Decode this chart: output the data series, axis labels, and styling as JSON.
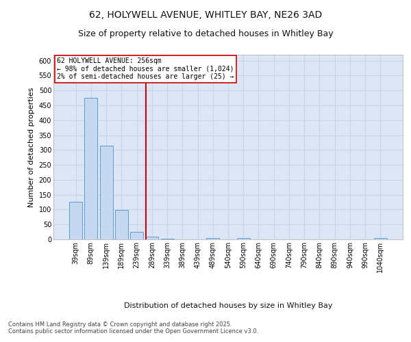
{
  "title_line1": "62, HOLYWELL AVENUE, WHITLEY BAY, NE26 3AD",
  "title_line2": "Size of property relative to detached houses in Whitley Bay",
  "xlabel": "Distribution of detached houses by size in Whitley Bay",
  "ylabel": "Number of detached properties",
  "categories": [
    "39sqm",
    "89sqm",
    "139sqm",
    "189sqm",
    "239sqm",
    "289sqm",
    "339sqm",
    "389sqm",
    "439sqm",
    "489sqm",
    "540sqm",
    "590sqm",
    "640sqm",
    "690sqm",
    "740sqm",
    "790sqm",
    "840sqm",
    "890sqm",
    "940sqm",
    "990sqm",
    "1040sqm"
  ],
  "values": [
    127,
    475,
    315,
    99,
    25,
    10,
    2,
    0,
    0,
    5,
    0,
    4,
    0,
    0,
    0,
    0,
    0,
    0,
    0,
    0,
    4
  ],
  "bar_color": "#c5d8f0",
  "bar_edge_color": "#5b9bd5",
  "grid_color": "#c8d4e8",
  "background_color": "#dce6f5",
  "vline_color": "#cc0000",
  "vline_x": 4.6,
  "annotation_text": "62 HOLYWELL AVENUE: 256sqm\n← 98% of detached houses are smaller (1,024)\n2% of semi-detached houses are larger (25) →",
  "annotation_box_color": "#ffffff",
  "annotation_box_edge": "#cc0000",
  "ylim": [
    0,
    620
  ],
  "yticks": [
    0,
    50,
    100,
    150,
    200,
    250,
    300,
    350,
    400,
    450,
    500,
    550,
    600
  ],
  "footer_text": "Contains HM Land Registry data © Crown copyright and database right 2025.\nContains public sector information licensed under the Open Government Licence v3.0.",
  "title_fontsize": 10,
  "subtitle_fontsize": 9,
  "tick_fontsize": 7,
  "label_fontsize": 8,
  "annotation_fontsize": 7,
  "footer_fontsize": 6
}
